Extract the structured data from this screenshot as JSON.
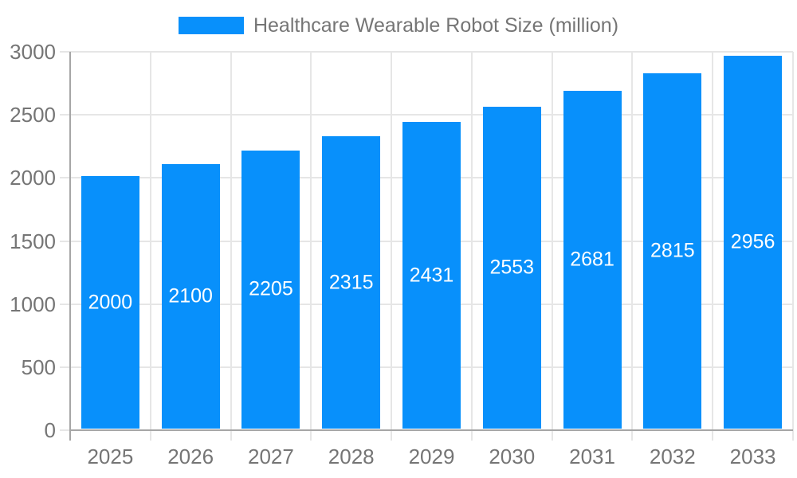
{
  "legend": {
    "label": "Healthcare Wearable Robot Size (million)"
  },
  "colors": {
    "bar": "#0890fb",
    "bar_label": "#ffffff",
    "axis_text": "#757575",
    "legend_text": "#757575",
    "grid": "#e6e6e6",
    "axis_line": "#a6a6a6",
    "background": "#ffffff"
  },
  "chart_data": {
    "type": "bar",
    "title": "Healthcare Wearable Robot Size (million)",
    "categories": [
      "2025",
      "2026",
      "2027",
      "2028",
      "2029",
      "2030",
      "2031",
      "2032",
      "2033"
    ],
    "values": [
      2000,
      2100,
      2205,
      2315,
      2431,
      2553,
      2681,
      2815,
      2956
    ],
    "series_name": "Healthcare Wearable Robot Size (million)",
    "xlabel": "",
    "ylabel": "",
    "ylim": [
      0,
      3000
    ],
    "yticks": [
      0,
      500,
      1000,
      1500,
      2000,
      2500,
      3000
    ],
    "grid": true,
    "legend_position": "top",
    "value_labels": "inside-center"
  }
}
